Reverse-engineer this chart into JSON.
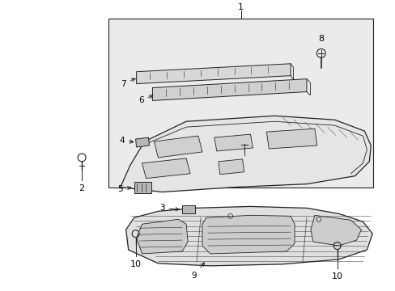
{
  "bg_color": "#ffffff",
  "box_bg": "#eeeeee",
  "fig_width": 4.89,
  "fig_height": 3.6,
  "dpi": 100,
  "line_color": "#222222",
  "fill_light": "#e8e8e8",
  "fill_mid": "#d8d8d8",
  "fill_dark": "#c0c0c0"
}
